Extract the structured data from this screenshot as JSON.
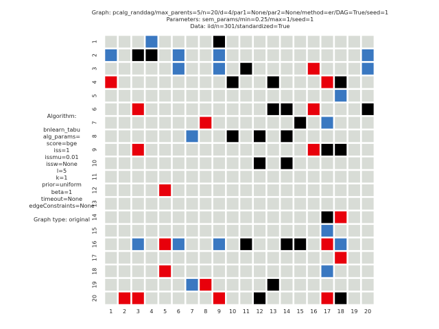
{
  "chart_data": {
    "type": "heatmap",
    "title_lines": [
      "Graph: pcalg_randdag/max_parents=5/n=20/d=4/par1=None/par2=None/method=er/DAG=True/seed=1",
      "Parameters: sem_params/min=0.25/max=1/seed=1",
      "Data: iid/n=301/standardized=True"
    ],
    "info_lines": [
      "Algorithm:",
      "",
      "bnlearn_tabu",
      "alg_params=",
      "score=bge",
      "iss=1",
      "issmu=0.01",
      "issw=None",
      "l=5",
      "k=1",
      "prior=uniform",
      "beta=1",
      "timeout=None",
      "edgeConstraints=None",
      "",
      "Graph type: original"
    ],
    "x_ticks": [
      "1",
      "2",
      "3",
      "4",
      "5",
      "6",
      "7",
      "8",
      "9",
      "10",
      "11",
      "12",
      "13",
      "14",
      "15",
      "16",
      "17",
      "18",
      "19",
      "20"
    ],
    "y_ticks": [
      "1",
      "2",
      "3",
      "4",
      "5",
      "6",
      "7",
      "8",
      "9",
      "10",
      "11",
      "12",
      "13",
      "14",
      "15",
      "16",
      "17",
      "18",
      "19",
      "20"
    ],
    "colors": {
      "empty": "#d8dcd6",
      "blue": "#3a78c1",
      "black": "#000000",
      "red": "#e8000b",
      "gridline": "#ffffff"
    },
    "legend_note": "cell codes: 0 = empty (grey), 1 = blue, 2 = black, 3 = red",
    "matrix": [
      [
        0,
        0,
        0,
        1,
        0,
        0,
        0,
        0,
        2,
        0,
        0,
        0,
        0,
        0,
        0,
        0,
        0,
        0,
        0,
        0
      ],
      [
        1,
        0,
        2,
        2,
        0,
        1,
        0,
        0,
        1,
        0,
        0,
        0,
        0,
        0,
        0,
        0,
        0,
        0,
        0,
        1
      ],
      [
        0,
        0,
        0,
        0,
        0,
        1,
        0,
        0,
        1,
        0,
        2,
        0,
        0,
        0,
        0,
        3,
        0,
        0,
        0,
        1
      ],
      [
        3,
        0,
        0,
        0,
        0,
        0,
        0,
        0,
        0,
        2,
        0,
        0,
        2,
        0,
        0,
        0,
        3,
        2,
        0,
        0
      ],
      [
        0,
        0,
        0,
        0,
        0,
        0,
        0,
        0,
        0,
        0,
        0,
        0,
        0,
        0,
        0,
        0,
        0,
        1,
        0,
        0
      ],
      [
        0,
        0,
        3,
        0,
        0,
        0,
        0,
        0,
        0,
        0,
        0,
        0,
        2,
        2,
        0,
        3,
        0,
        0,
        0,
        2
      ],
      [
        0,
        0,
        0,
        0,
        0,
        0,
        0,
        3,
        0,
        0,
        0,
        0,
        0,
        0,
        2,
        0,
        1,
        0,
        0,
        0
      ],
      [
        0,
        0,
        0,
        0,
        0,
        0,
        1,
        0,
        0,
        2,
        0,
        2,
        0,
        2,
        0,
        0,
        0,
        0,
        0,
        0
      ],
      [
        0,
        0,
        3,
        0,
        0,
        0,
        0,
        0,
        0,
        0,
        0,
        0,
        0,
        0,
        0,
        3,
        2,
        2,
        0,
        0
      ],
      [
        0,
        0,
        0,
        0,
        0,
        0,
        0,
        0,
        0,
        0,
        0,
        2,
        0,
        2,
        0,
        0,
        0,
        0,
        0,
        0
      ],
      [
        0,
        0,
        0,
        0,
        0,
        0,
        0,
        0,
        0,
        0,
        0,
        0,
        0,
        0,
        0,
        0,
        0,
        0,
        0,
        0
      ],
      [
        0,
        0,
        0,
        0,
        3,
        0,
        0,
        0,
        0,
        0,
        0,
        0,
        0,
        0,
        0,
        0,
        0,
        0,
        0,
        0
      ],
      [
        0,
        0,
        0,
        0,
        0,
        0,
        0,
        0,
        0,
        0,
        0,
        0,
        0,
        0,
        0,
        0,
        0,
        0,
        0,
        0
      ],
      [
        0,
        0,
        0,
        0,
        0,
        0,
        0,
        0,
        0,
        0,
        0,
        0,
        0,
        0,
        0,
        0,
        2,
        3,
        0,
        0
      ],
      [
        0,
        0,
        0,
        0,
        0,
        0,
        0,
        0,
        0,
        0,
        0,
        0,
        0,
        0,
        0,
        0,
        1,
        0,
        0,
        0
      ],
      [
        0,
        0,
        1,
        0,
        3,
        1,
        0,
        0,
        1,
        0,
        2,
        0,
        0,
        2,
        2,
        0,
        3,
        1,
        0,
        0
      ],
      [
        0,
        0,
        0,
        0,
        0,
        0,
        0,
        0,
        0,
        0,
        0,
        0,
        0,
        0,
        0,
        0,
        0,
        3,
        0,
        0
      ],
      [
        0,
        0,
        0,
        0,
        3,
        0,
        0,
        0,
        0,
        0,
        0,
        0,
        0,
        0,
        0,
        0,
        1,
        0,
        0,
        0
      ],
      [
        0,
        0,
        0,
        0,
        0,
        0,
        1,
        3,
        0,
        0,
        0,
        0,
        2,
        0,
        0,
        0,
        0,
        0,
        0,
        0
      ],
      [
        0,
        3,
        3,
        0,
        0,
        0,
        0,
        0,
        3,
        0,
        0,
        2,
        0,
        0,
        0,
        0,
        3,
        2,
        0,
        0
      ]
    ]
  }
}
